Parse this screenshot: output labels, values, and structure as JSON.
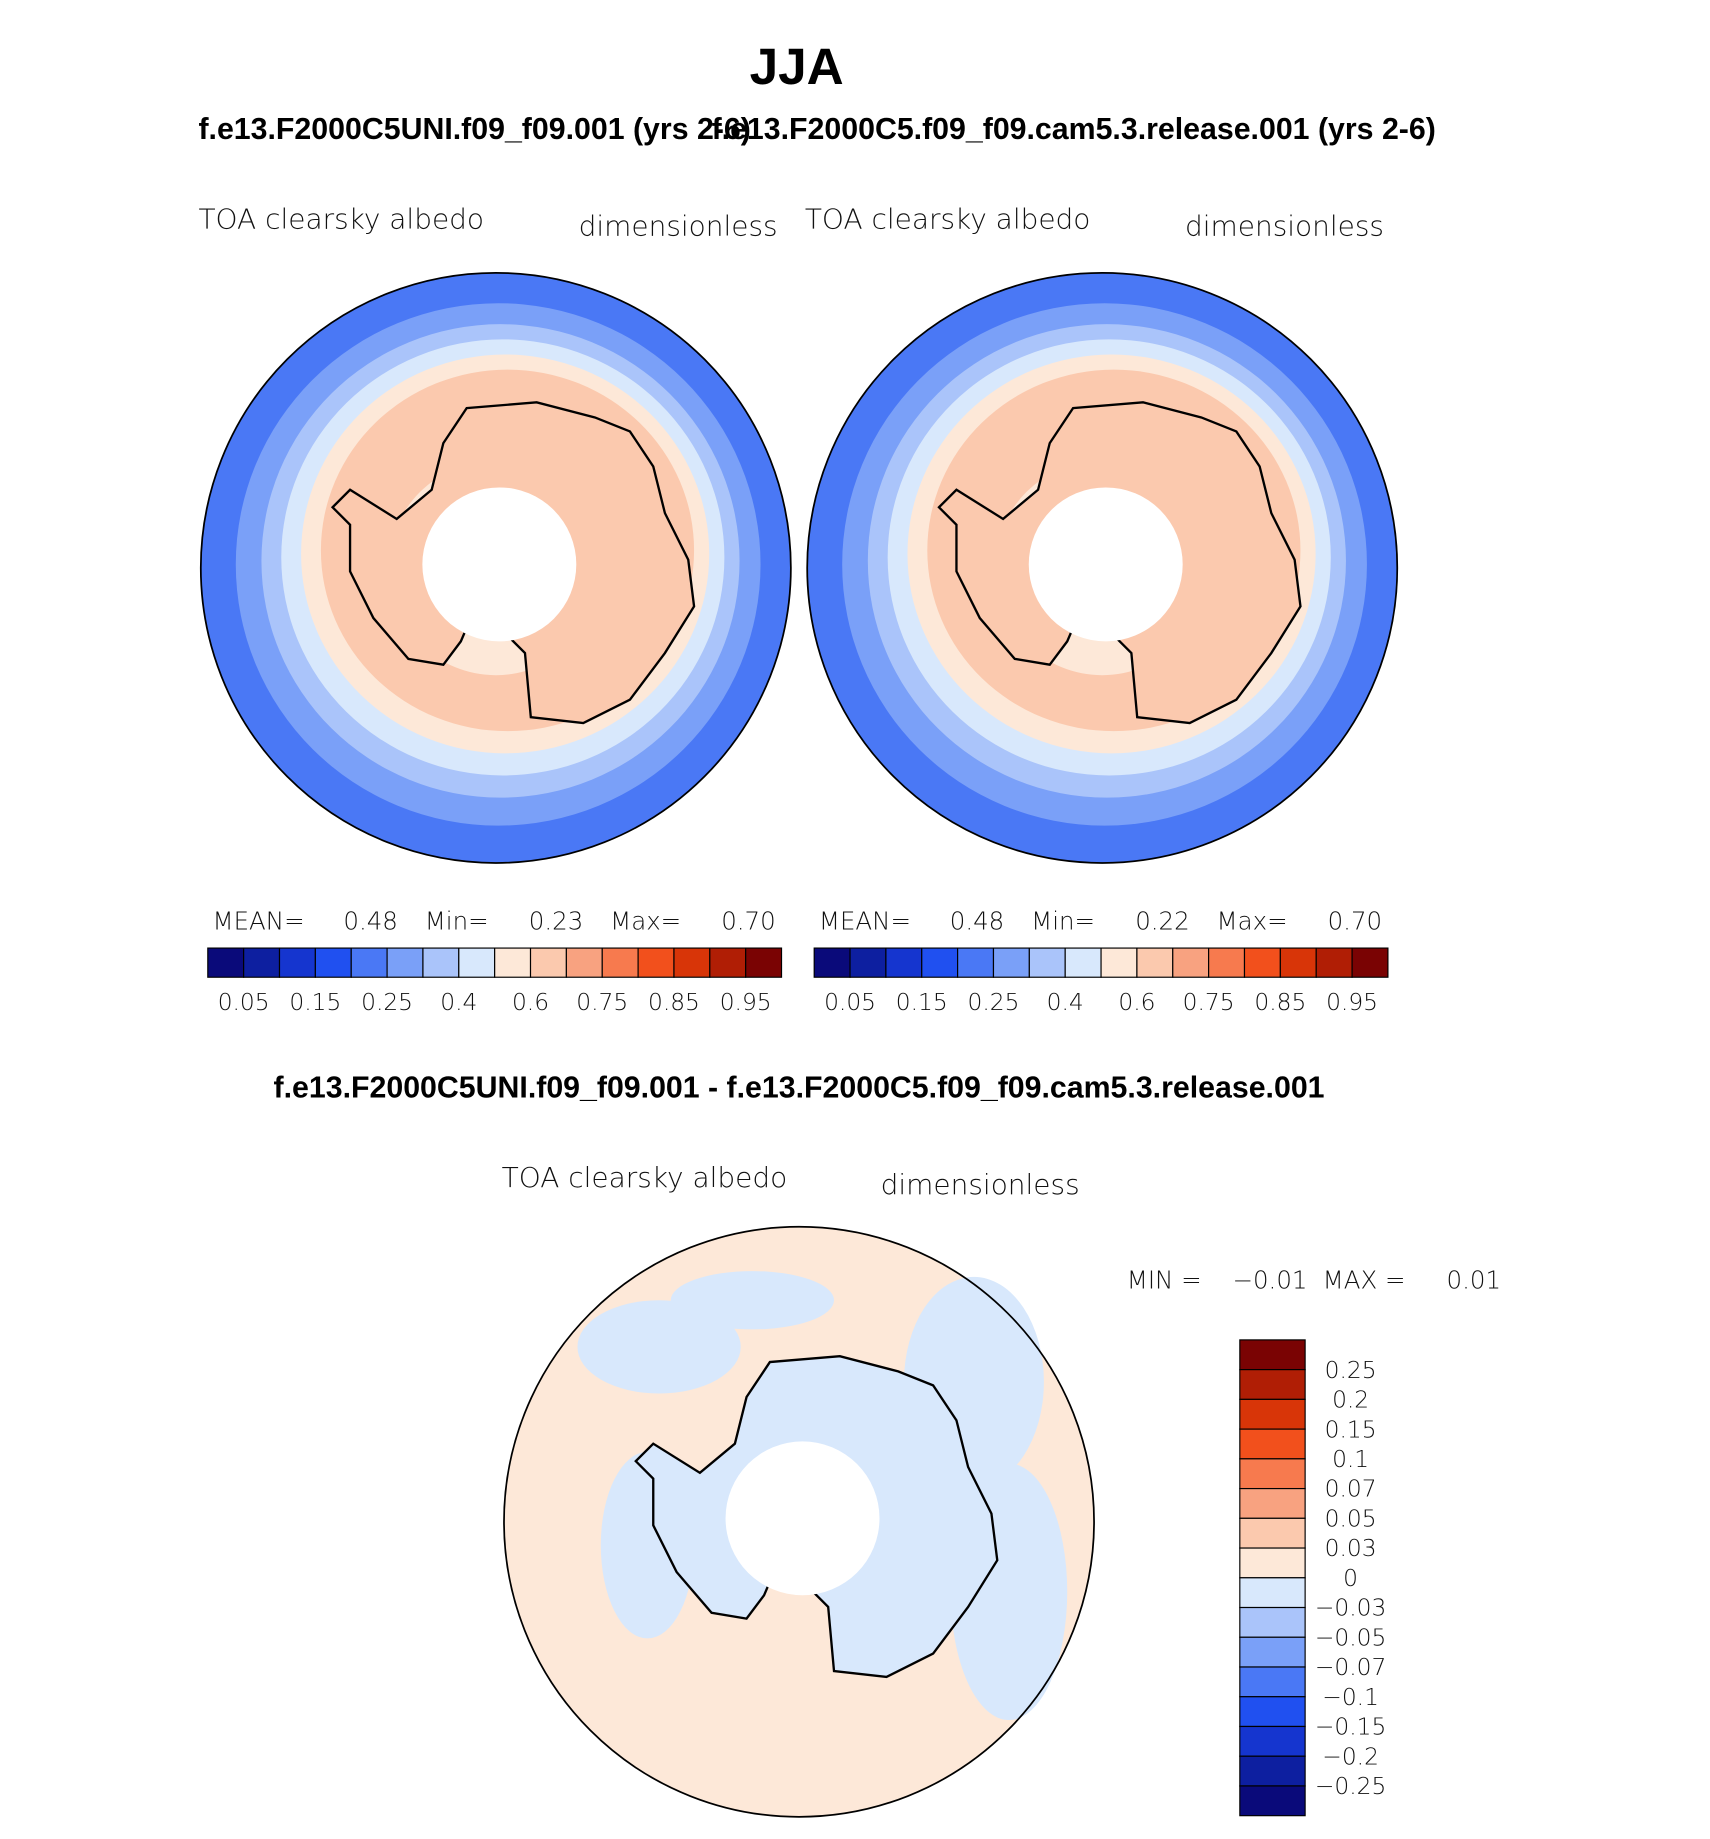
{
  "title": "JJA",
  "panels": [
    {
      "case": "f.e13.F2000C5UNI.f09_f09.001 (yrs 2-6)",
      "left_label": "TOA clearsky albedo",
      "right_label": "dimensionless",
      "stats": [
        {
          "name": "MEAN=",
          "value": "0.48"
        },
        {
          "name": "Min=",
          "value": "0.23"
        },
        {
          "name": "Max=",
          "value": "0.70"
        }
      ]
    },
    {
      "case": "f.e13.F2000C5.f09_f09.cam5.3.release.001 (yrs 2-6)",
      "left_label": "TOA clearsky albedo",
      "right_label": "dimensionless",
      "stats": [
        {
          "name": "MEAN=",
          "value": "0.48"
        },
        {
          "name": "Min=",
          "value": "0.22"
        },
        {
          "name": "Max=",
          "value": "0.70"
        }
      ]
    }
  ],
  "colorbar": {
    "colors": [
      "#0a0a7a",
      "#0d1fa0",
      "#1535cf",
      "#2050f0",
      "#4a78f5",
      "#7aa0f8",
      "#aac4fa",
      "#d8e8fc",
      "#fde8d8",
      "#fbc9ae",
      "#f8a280",
      "#f77a4e",
      "#f2501c",
      "#d83508",
      "#b01e05",
      "#7a0303"
    ],
    "labels": [
      "0.05",
      "0.15",
      "0.25",
      "0.4",
      "0.6",
      "0.75",
      "0.85",
      "0.95"
    ]
  },
  "difference": {
    "title": "f.e13.F2000C5UNI.f09_f09.001 - f.e13.F2000C5.f09_f09.cam5.3.release.001",
    "left_label": "TOA clearsky albedo",
    "right_label": "dimensionless",
    "stats": [
      {
        "name": "MIN =",
        "value": "−0.01"
      },
      {
        "name": "MAX =",
        "value": "0.01"
      }
    ],
    "colorbar": {
      "colors": [
        "#7a0303",
        "#b01e05",
        "#d83508",
        "#f2501c",
        "#f77a4e",
        "#f8a280",
        "#fbc9ae",
        "#fde8d8",
        "#d8e8fc",
        "#aac4fa",
        "#7aa0f8",
        "#4a78f5",
        "#2050f0",
        "#1535cf",
        "#0d1fa0",
        "#0a0a7a"
      ],
      "labels": [
        "0.25",
        "0.2",
        "0.15",
        "0.1",
        "0.07",
        "0.05",
        "0.03",
        "0",
        "−0.03",
        "−0.05",
        "−0.07",
        "−0.1",
        "−0.15",
        "−0.2",
        "−0.25"
      ]
    }
  }
}
